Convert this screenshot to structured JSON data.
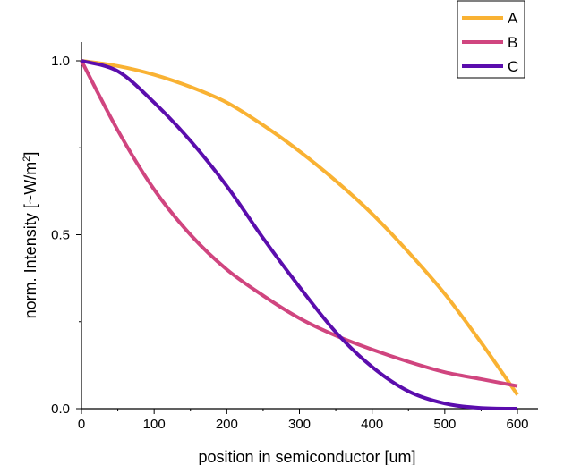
{
  "chart_data": {
    "type": "line",
    "xlabel": "position in semiconductor [um]",
    "ylabel": "norm. Intensity [~W/m",
    "ylabel_superscript": "2",
    "ylabel_suffix": "]",
    "xlim": [
      0,
      600
    ],
    "ylim": [
      0,
      1
    ],
    "x_ticks": [
      0,
      100,
      200,
      300,
      400,
      500,
      600
    ],
    "y_ticks": [
      0.0,
      0.5,
      1.0
    ],
    "y_tick_labels": [
      "0.0",
      "0.5",
      "1.0"
    ],
    "grid": false,
    "legend_position": "top-right",
    "x": [
      0,
      50,
      100,
      150,
      200,
      250,
      300,
      350,
      400,
      450,
      500,
      550,
      600
    ],
    "series": [
      {
        "name": "A",
        "color": "#F9B233",
        "values": [
          1.0,
          0.985,
          0.96,
          0.925,
          0.88,
          0.815,
          0.74,
          0.655,
          0.56,
          0.45,
          0.33,
          0.19,
          0.04
        ]
      },
      {
        "name": "B",
        "color": "#D0457F",
        "values": [
          1.0,
          0.8,
          0.63,
          0.5,
          0.4,
          0.325,
          0.26,
          0.21,
          0.17,
          0.135,
          0.105,
          0.085,
          0.065
        ]
      },
      {
        "name": "C",
        "color": "#5B0DAD",
        "values": [
          1.0,
          0.97,
          0.88,
          0.77,
          0.64,
          0.49,
          0.35,
          0.22,
          0.12,
          0.05,
          0.015,
          0.002,
          0.0
        ]
      }
    ]
  }
}
